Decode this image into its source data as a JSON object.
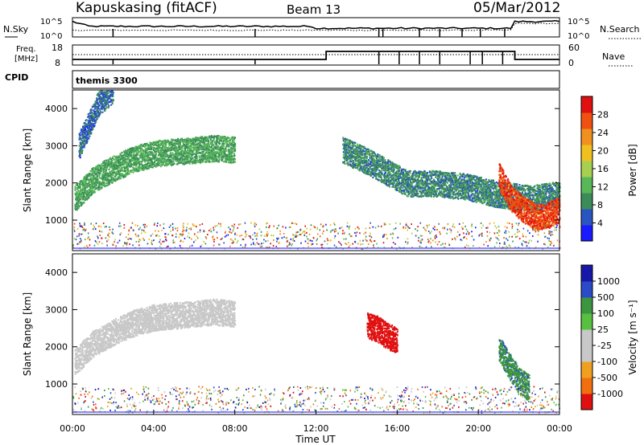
{
  "header": {
    "station": "Kapuskasing (fitACF)",
    "beam": "Beam 13",
    "date": "05/Mar/2012"
  },
  "noise_panel": {
    "left_label": "N.Sky",
    "right_label": "N.Search",
    "left_ticks": [
      "10^5",
      "10^0"
    ],
    "right_ticks": [
      "10^5",
      "10^0"
    ]
  },
  "freq_panel": {
    "left_label_line1": "Freq.",
    "left_label_line2": "[MHz]",
    "left_ticks": [
      "18",
      "8"
    ],
    "right_label": "Nave",
    "right_ticks": [
      "60",
      "0"
    ]
  },
  "cpid_panel": {
    "label": "CPID",
    "program": "themis 3300"
  },
  "colors": {
    "power_scale": [
      "#1a1aff",
      "#2a55c0",
      "#3c8c5a",
      "#58b858",
      "#a8d050",
      "#f0c020",
      "#f09020",
      "#f05010",
      "#e01010"
    ],
    "velocity_scale": [
      "#1818a8",
      "#2a4ac8",
      "#3c9640",
      "#58c040",
      "#c8c8c8",
      "#c8c8c8",
      "#f0a020",
      "#f07010",
      "#e01010"
    ]
  },
  "chart_data": [
    {
      "type": "heatmap",
      "title": "",
      "xlabel": "",
      "ylabel": "Slant Range [km]",
      "xlim": [
        0,
        24
      ],
      "ylim": [
        180,
        4500
      ],
      "y_ticks": [
        "1000",
        "2000",
        "3000",
        "4000"
      ],
      "colorbar": {
        "label": "Power [dB]",
        "ticks": [
          "4",
          "8",
          "12",
          "16",
          "20",
          "24",
          "28"
        ],
        "range": [
          0,
          30
        ]
      },
      "features": [
        {
          "name": "arc_band",
          "x": [
            0.1,
            1.0,
            2.0,
            3.0,
            4.0,
            5.0,
            6.0,
            7.0,
            8.0
          ],
          "y": [
            1600,
            2100,
            2400,
            2650,
            2800,
            2850,
            2900,
            2950,
            2900
          ],
          "value": 10
        },
        {
          "name": "high_band",
          "x": [
            0.3,
            0.8,
            1.3,
            2.0
          ],
          "y": [
            3000,
            3600,
            4200,
            4500
          ],
          "value": 6
        },
        {
          "name": "evening_band",
          "x": [
            13.3,
            14.5,
            15.5,
            16.5,
            18.0,
            19.5,
            21.0,
            22.5,
            24.0
          ],
          "y": [
            2900,
            2600,
            2300,
            2000,
            2000,
            1900,
            1700,
            1600,
            1700
          ],
          "value": 8
        },
        {
          "name": "strong_echo",
          "x": [
            21.0,
            21.6,
            22.2,
            22.8,
            23.4,
            24.0
          ],
          "y": [
            2200,
            1600,
            1300,
            1100,
            1150,
            1300
          ],
          "value": 26
        }
      ]
    },
    {
      "type": "heatmap",
      "title": "",
      "xlabel": "Time UT",
      "ylabel": "Slant Range [km]",
      "xlim": [
        0,
        24
      ],
      "ylim": [
        180,
        4500
      ],
      "x_ticks": [
        "00:00",
        "04:00",
        "08:00",
        "12:00",
        "16:00",
        "20:00",
        "00:00"
      ],
      "y_ticks": [
        "1000",
        "2000",
        "3000",
        "4000"
      ],
      "colorbar": {
        "label": "Velocity [m s⁻¹]",
        "ticks": [
          "1000",
          "500",
          "100",
          "25",
          "-25",
          "-100",
          "-500",
          "-1000"
        ]
      },
      "features": [
        {
          "name": "arc_band",
          "x": [
            0.1,
            1.0,
            2.0,
            3.0,
            4.0,
            5.0,
            6.0,
            7.0,
            8.0
          ],
          "y": [
            1600,
            2100,
            2400,
            2650,
            2800,
            2850,
            2900,
            2950,
            2900
          ],
          "value": 0
        },
        {
          "name": "red_patch",
          "x": [
            14.5,
            15.0,
            15.5,
            16.0
          ],
          "y": [
            2600,
            2500,
            2300,
            2200
          ],
          "value": -800
        },
        {
          "name": "green_descent",
          "x": [
            21.0,
            21.5,
            22.0,
            22.5
          ],
          "y": [
            2000,
            1500,
            1100,
            900
          ],
          "value": 300
        }
      ]
    }
  ]
}
